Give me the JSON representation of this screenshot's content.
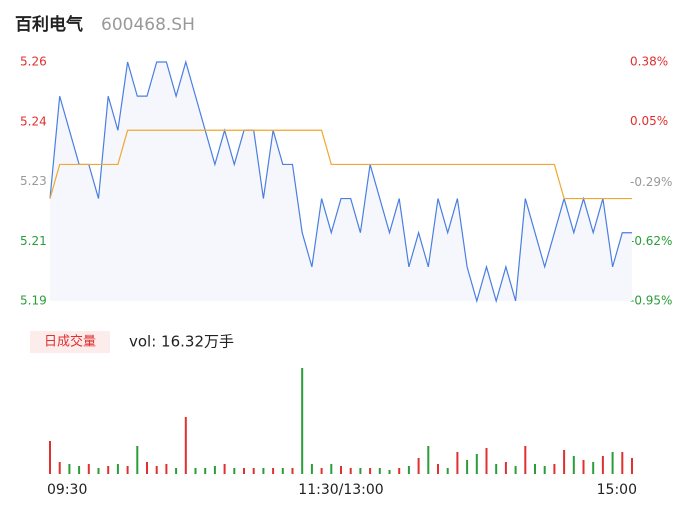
{
  "chart_data": {
    "type": "line",
    "title": "百利电气",
    "subtitle": "600468.SH",
    "x": [
      0,
      4,
      8,
      12,
      16,
      20,
      24,
      28,
      32,
      36,
      40,
      44,
      48,
      52,
      56,
      60,
      64,
      68,
      72,
      76,
      80,
      84,
      88,
      92,
      96,
      100,
      104,
      108,
      112,
      116,
      120,
      124,
      128,
      132,
      136,
      140,
      144,
      148,
      152,
      156,
      160,
      164,
      168,
      172,
      176,
      180,
      184,
      188,
      192,
      196,
      200,
      204,
      208,
      212,
      216,
      220,
      224,
      228,
      232,
      236,
      240
    ],
    "xlim": [
      0,
      240
    ],
    "xticks": [
      {
        "value": 0,
        "label": "09:30"
      },
      {
        "value": 120,
        "label": "11:30/13:00"
      },
      {
        "value": 240,
        "label": "15:00"
      }
    ],
    "series": [
      {
        "name": "price",
        "color": "#4a7fe0",
        "values": [
          5.22,
          5.25,
          5.24,
          5.23,
          5.23,
          5.22,
          5.25,
          5.24,
          5.26,
          5.25,
          5.25,
          5.26,
          5.26,
          5.25,
          5.26,
          5.25,
          5.24,
          5.23,
          5.24,
          5.23,
          5.24,
          5.24,
          5.22,
          5.24,
          5.23,
          5.23,
          5.21,
          5.2,
          5.22,
          5.21,
          5.22,
          5.22,
          5.21,
          5.23,
          5.22,
          5.21,
          5.22,
          5.2,
          5.21,
          5.2,
          5.22,
          5.21,
          5.22,
          5.2,
          5.19,
          5.2,
          5.19,
          5.2,
          5.19,
          5.22,
          5.21,
          5.2,
          5.21,
          5.22,
          5.21,
          5.22,
          5.21,
          5.22,
          5.2,
          5.21,
          5.21
        ]
      },
      {
        "name": "average",
        "color": "#f0a830",
        "values": [
          5.22,
          5.23,
          5.23,
          5.23,
          5.23,
          5.23,
          5.23,
          5.23,
          5.24,
          5.24,
          5.24,
          5.24,
          5.24,
          5.24,
          5.24,
          5.24,
          5.24,
          5.24,
          5.24,
          5.24,
          5.24,
          5.24,
          5.24,
          5.24,
          5.24,
          5.24,
          5.24,
          5.24,
          5.24,
          5.23,
          5.23,
          5.23,
          5.23,
          5.23,
          5.23,
          5.23,
          5.23,
          5.23,
          5.23,
          5.23,
          5.23,
          5.23,
          5.23,
          5.23,
          5.23,
          5.23,
          5.23,
          5.23,
          5.23,
          5.23,
          5.23,
          5.23,
          5.23,
          5.22,
          5.22,
          5.22,
          5.22,
          5.22,
          5.22,
          5.22,
          5.22
        ]
      }
    ],
    "ylim": [
      5.19,
      5.26
    ],
    "yticks": [
      5.19,
      {
        "value": 5.2075,
        "label": "5.21"
      },
      {
        "value": 5.225,
        "label": "5.23"
      },
      {
        "value": 5.2425,
        "label": "5.24"
      },
      5.26
    ],
    "ytick_colors": [
      "#2a9d3a",
      "#2a9d3a",
      "#999999",
      "#e03030",
      "#e03030"
    ],
    "y2lim": [
      -0.95,
      0.38
    ],
    "y2ticks": [
      {
        "value": -0.95,
        "label": "-0.95%"
      },
      {
        "value": -0.62,
        "label": "-0.62%"
      },
      {
        "value": -0.29,
        "label": "-0.29%"
      },
      {
        "value": 0.05,
        "label": "0.05%"
      },
      {
        "value": 0.38,
        "label": "0.38%"
      }
    ],
    "volume_legend": "日成交量",
    "volume_text": "vol: 16.32万手",
    "volume": [
      33,
      12,
      10,
      8,
      10,
      6,
      8,
      10,
      8,
      28,
      12,
      8,
      10,
      6,
      57,
      6,
      6,
      8,
      10,
      6,
      6,
      6,
      6,
      6,
      6,
      6,
      106,
      10,
      6,
      10,
      8,
      6,
      6,
      6,
      6,
      4,
      6,
      8,
      16,
      28,
      10,
      6,
      22,
      14,
      20,
      26,
      10,
      12,
      8,
      28,
      10,
      8,
      10,
      24,
      18,
      14,
      12,
      18,
      22,
      22,
      16
    ],
    "up_color": "#e03030",
    "down_color": "#2a9d3a"
  }
}
